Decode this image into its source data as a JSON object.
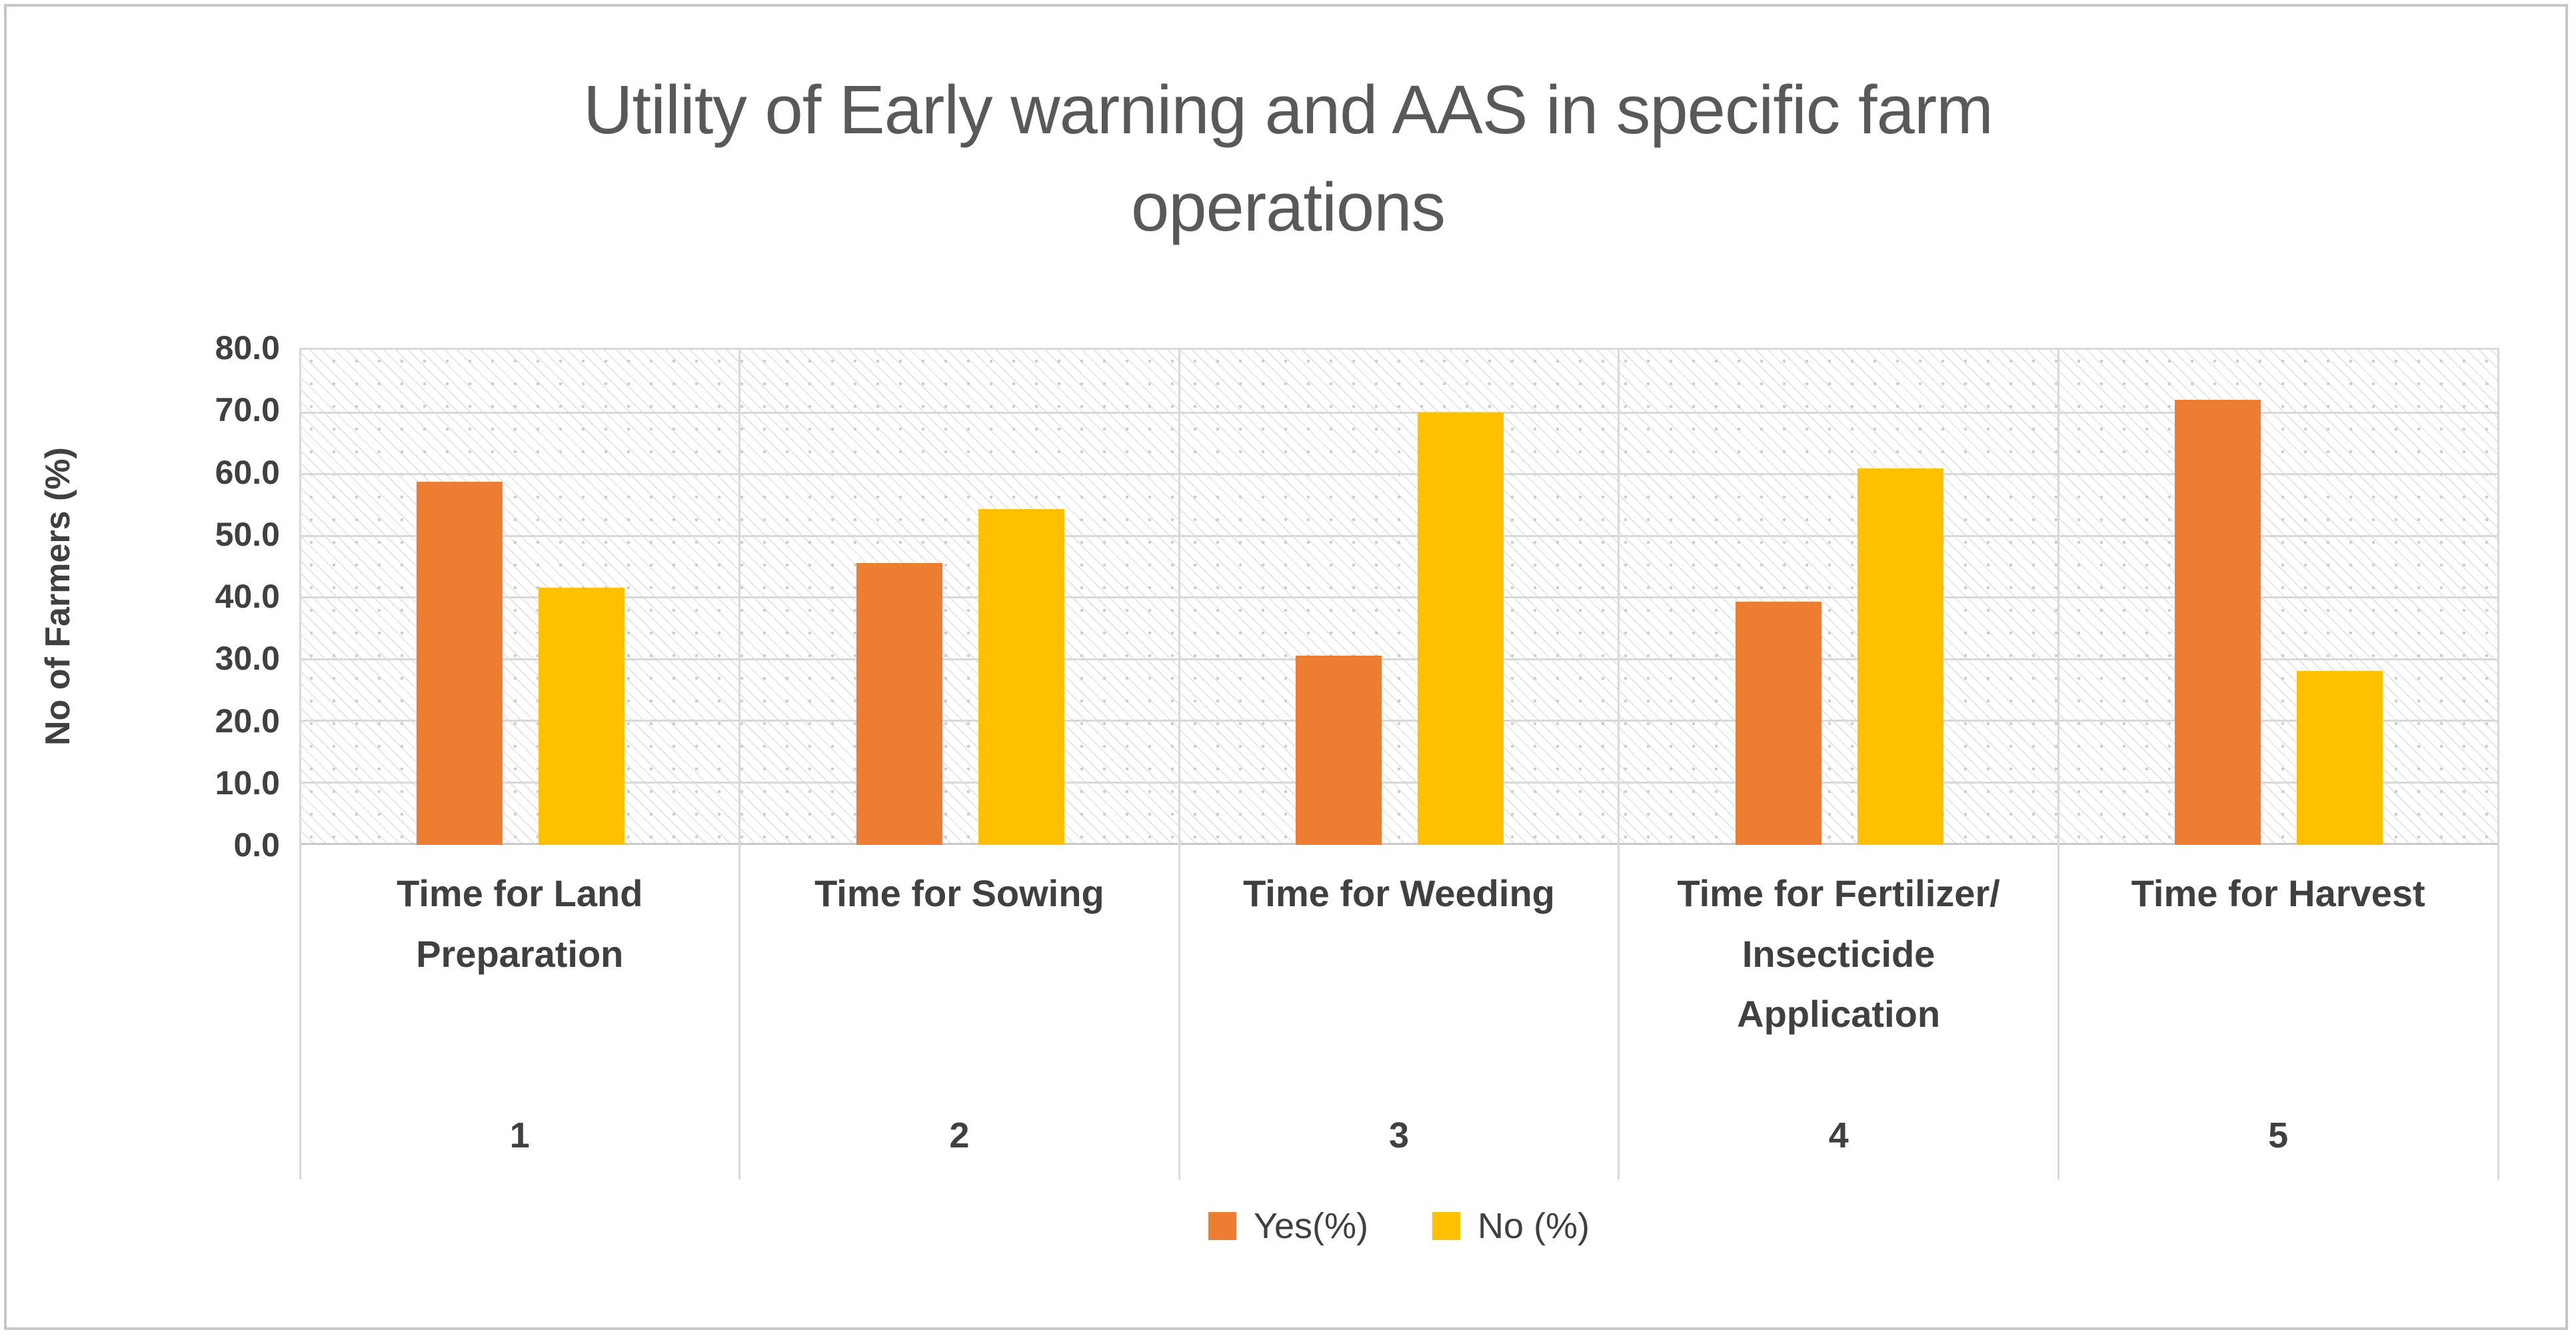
{
  "title_display": "Utility of Early warning and AAS in specific farm\noperations",
  "colors": {
    "yes": "#ED7D31",
    "no": "#FFC000",
    "title_text": "#595959",
    "axis_text": "#404040",
    "gridline": "#D9D9D9"
  },
  "chart_data": {
    "type": "bar",
    "title": "Utility of Early warning and AAS in specific farm operations",
    "xlabel": "",
    "ylabel": "No of Farmers (%)",
    "ylim": [
      0,
      80
    ],
    "y_tick_step": 10,
    "y_tick_labels": [
      "0.0",
      "10.0",
      "20.0",
      "30.0",
      "40.0",
      "50.0",
      "60.0",
      "70.0",
      "80.0"
    ],
    "grid": true,
    "grid_pattern_fill": "diagonal-hatch",
    "legend_position": "bottom",
    "categories": [
      "Time for Land Preparation",
      "Time for Sowing",
      "Time for Weeding",
      "Time for Fertilizer/ Insecticide Application",
      "Time for Harvest"
    ],
    "category_display": [
      "Time for Land\nPreparation",
      "Time for Sowing",
      "Time for Weeding",
      "Time for Fertilizer/\nInsecticide\nApplication",
      "Time for Harvest"
    ],
    "group_numbers": [
      "1",
      "2",
      "3",
      "4",
      "5"
    ],
    "series": [
      {
        "name": "Yes(%)",
        "color": "#ED7D31",
        "values": [
          58.4,
          45.4,
          30.5,
          39.1,
          71.6
        ]
      },
      {
        "name": "No (%)",
        "color": "#FFC000",
        "values": [
          41.4,
          54.1,
          69.6,
          60.6,
          28.0
        ]
      }
    ]
  }
}
